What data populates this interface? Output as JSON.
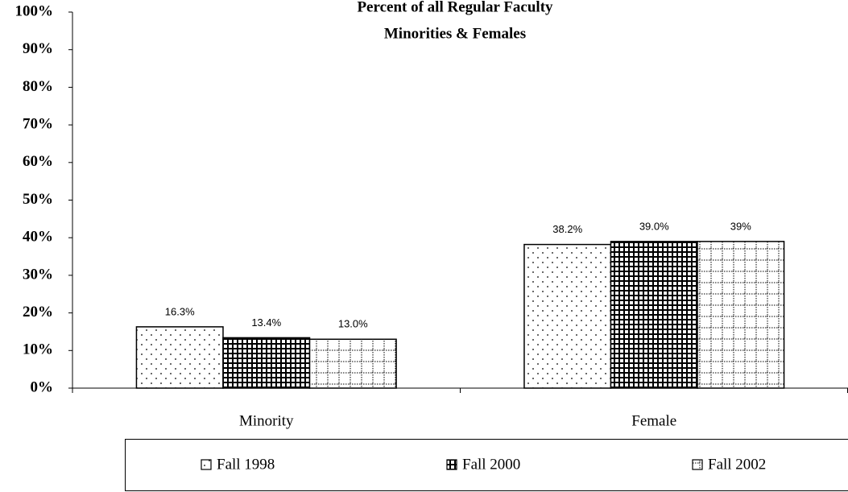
{
  "chart_data": {
    "type": "bar",
    "title": "Percent of all Regular Faculty",
    "subtitle": "Minorities & Females",
    "categories": [
      "Minority",
      "Female"
    ],
    "series": [
      {
        "name": "Fall 1998",
        "color": "#000000",
        "pattern": "dots",
        "values": [
          16.3,
          38.2
        ],
        "value_labels": [
          "16.3%",
          "38.2%"
        ]
      },
      {
        "name": "Fall 2000",
        "color": "#000000",
        "pattern": "grid",
        "values": [
          13.4,
          39.0
        ],
        "value_labels": [
          "13.4%",
          "39.0%"
        ]
      },
      {
        "name": "Fall 2002",
        "color": "#000000",
        "pattern": "dotted-grid",
        "values": [
          13.0,
          39
        ],
        "value_labels": [
          "13.0%",
          "39%"
        ]
      }
    ],
    "ylim": [
      0,
      100
    ],
    "yticks": [
      {
        "value": 0,
        "label": "0%"
      },
      {
        "value": 10,
        "label": "10%"
      },
      {
        "value": 20,
        "label": "20%"
      },
      {
        "value": 30,
        "label": "30%"
      },
      {
        "value": 40,
        "label": "40%"
      },
      {
        "value": 50,
        "label": "50%"
      },
      {
        "value": 60,
        "label": "60%"
      },
      {
        "value": 70,
        "label": "70%"
      },
      {
        "value": 80,
        "label": "80%"
      },
      {
        "value": 90,
        "label": "90%"
      },
      {
        "value": 100,
        "label": "100%"
      }
    ],
    "grid": false,
    "legend": "bottom"
  }
}
